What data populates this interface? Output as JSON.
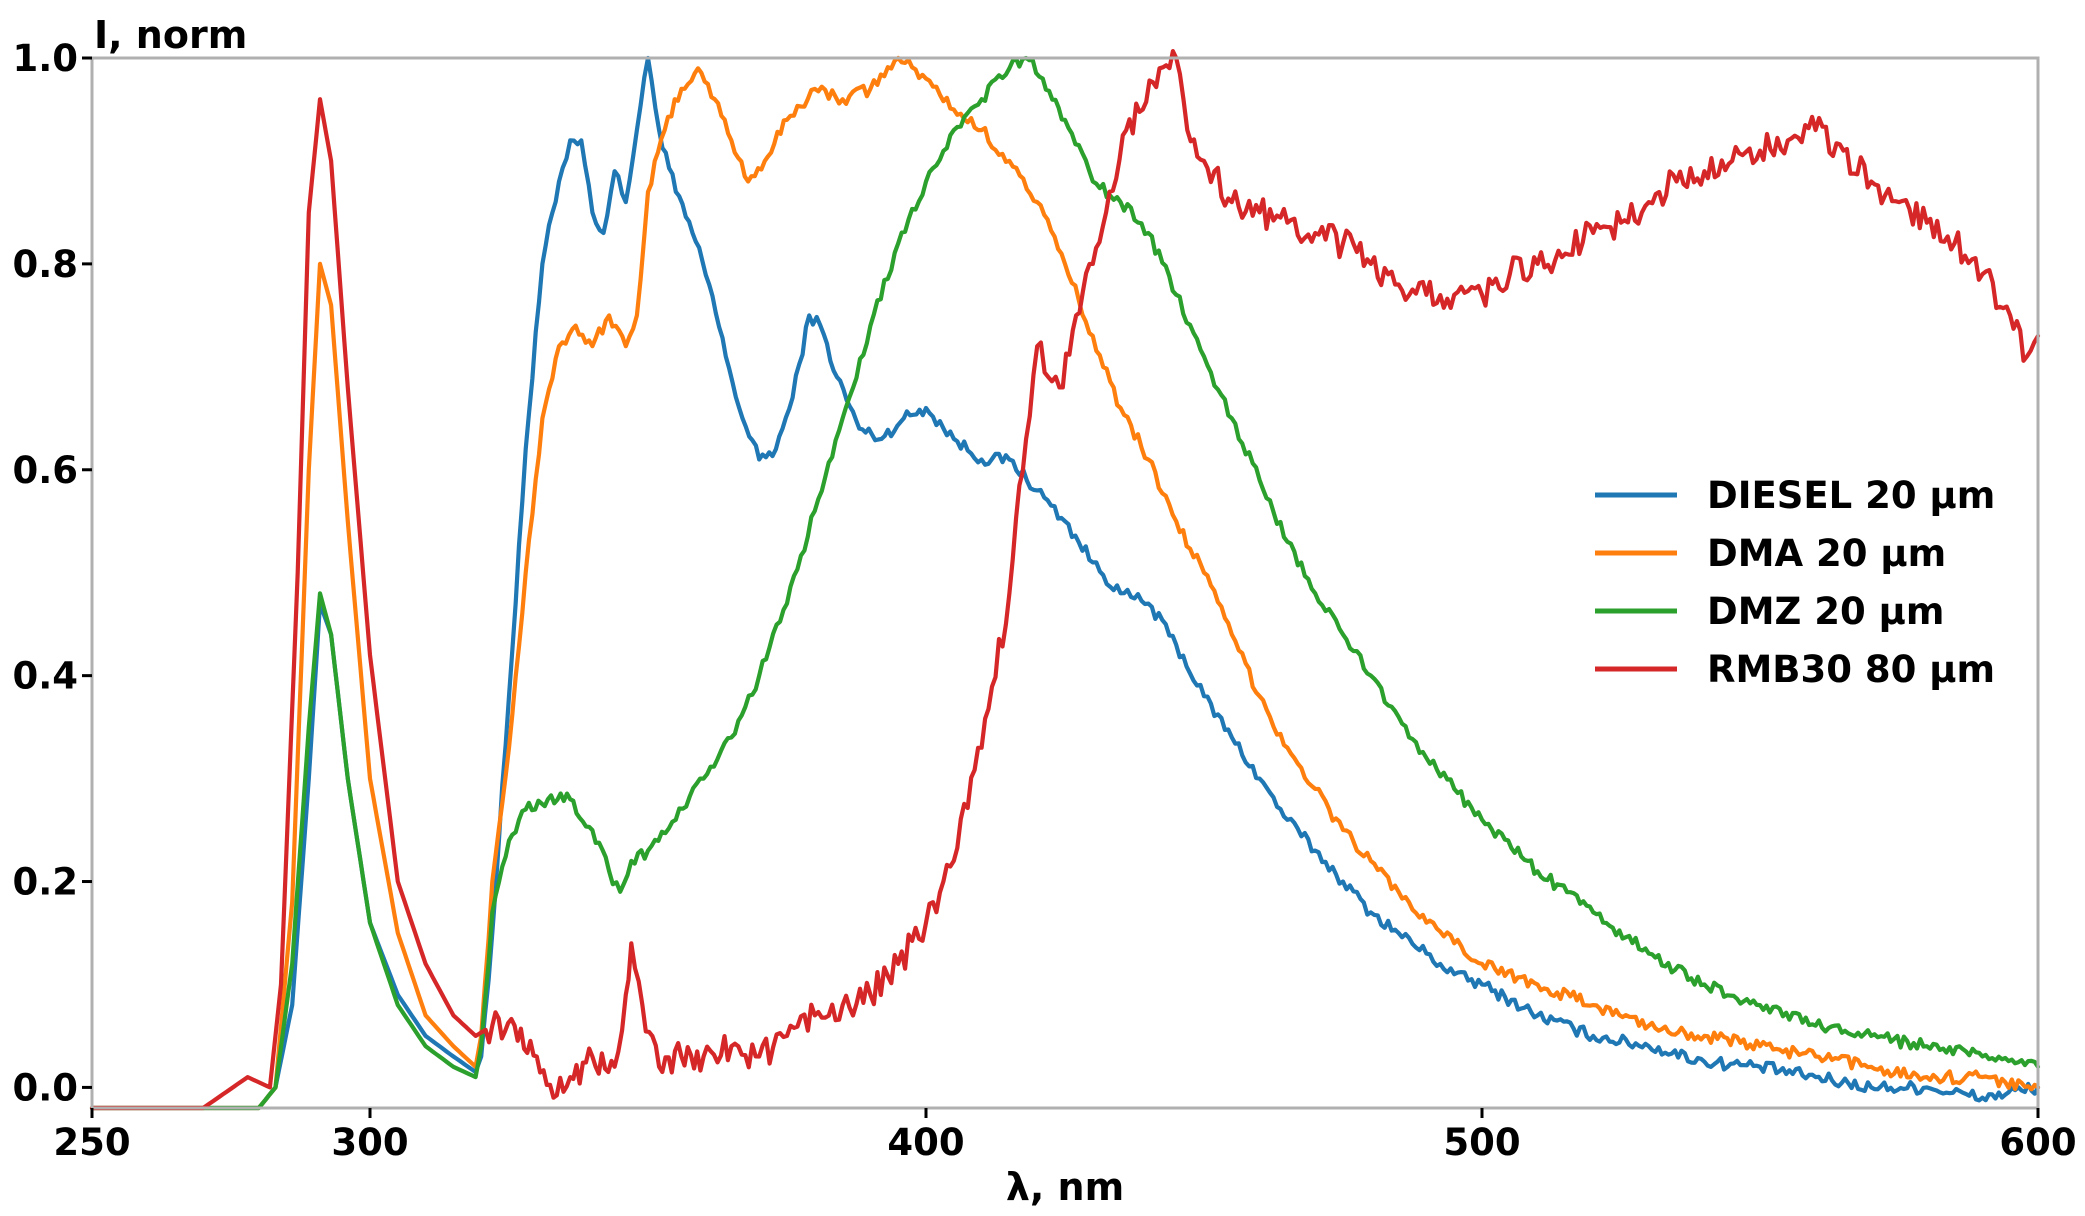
{
  "chart_data": {
    "type": "line",
    "title": "",
    "xlabel": "λ, nm",
    "ylabel": "I, norm",
    "xlim": [
      250,
      600
    ],
    "ylim": [
      -0.02,
      1.0
    ],
    "xticks": [
      250,
      300,
      400,
      500,
      600
    ],
    "xtick_labels": [
      "250",
      "300",
      "400",
      "500",
      "600"
    ],
    "yticks": [
      0.0,
      0.2,
      0.4,
      0.6,
      0.8,
      1.0
    ],
    "ytick_labels": [
      "0.0",
      "0.2",
      "0.4",
      "0.6",
      "0.8",
      "1.0"
    ],
    "grid": false,
    "legend_position": "center-right",
    "series": [
      {
        "name": "DIESEL 20 μm",
        "color": "#1f77b4",
        "points": [
          [
            250,
            -0.02
          ],
          [
            280,
            -0.02
          ],
          [
            283,
            0.0
          ],
          [
            286,
            0.08
          ],
          [
            289,
            0.3
          ],
          [
            291,
            0.47
          ],
          [
            293,
            0.44
          ],
          [
            296,
            0.3
          ],
          [
            300,
            0.16
          ],
          [
            305,
            0.09
          ],
          [
            310,
            0.05
          ],
          [
            315,
            0.03
          ],
          [
            319,
            0.015
          ],
          [
            320,
            0.03
          ],
          [
            322,
            0.15
          ],
          [
            325,
            0.38
          ],
          [
            328,
            0.62
          ],
          [
            331,
            0.8
          ],
          [
            334,
            0.88
          ],
          [
            336,
            0.92
          ],
          [
            338,
            0.92
          ],
          [
            340,
            0.85
          ],
          [
            342,
            0.83
          ],
          [
            344,
            0.89
          ],
          [
            346,
            0.86
          ],
          [
            348,
            0.93
          ],
          [
            350,
            1.0
          ],
          [
            352,
            0.93
          ],
          [
            355,
            0.87
          ],
          [
            358,
            0.83
          ],
          [
            361,
            0.78
          ],
          [
            364,
            0.71
          ],
          [
            367,
            0.65
          ],
          [
            370,
            0.61
          ],
          [
            373,
            0.62
          ],
          [
            376,
            0.67
          ],
          [
            379,
            0.75
          ],
          [
            381,
            0.74
          ],
          [
            384,
            0.69
          ],
          [
            388,
            0.64
          ],
          [
            392,
            0.63
          ],
          [
            396,
            0.65
          ],
          [
            400,
            0.66
          ],
          [
            405,
            0.63
          ],
          [
            410,
            0.61
          ],
          [
            415,
            0.61
          ],
          [
            420,
            0.58
          ],
          [
            425,
            0.55
          ],
          [
            430,
            0.51
          ],
          [
            435,
            0.48
          ],
          [
            440,
            0.47
          ],
          [
            445,
            0.43
          ],
          [
            450,
            0.38
          ],
          [
            455,
            0.34
          ],
          [
            460,
            0.3
          ],
          [
            465,
            0.26
          ],
          [
            470,
            0.23
          ],
          [
            475,
            0.2
          ],
          [
            480,
            0.17
          ],
          [
            485,
            0.15
          ],
          [
            490,
            0.13
          ],
          [
            495,
            0.11
          ],
          [
            500,
            0.1
          ],
          [
            510,
            0.07
          ],
          [
            520,
            0.05
          ],
          [
            530,
            0.04
          ],
          [
            540,
            0.025
          ],
          [
            550,
            0.02
          ],
          [
            560,
            0.01
          ],
          [
            570,
            0.0
          ],
          [
            580,
            0.0
          ],
          [
            590,
            -0.01
          ],
          [
            600,
            0.0
          ]
        ]
      },
      {
        "name": "DMA 20 μm",
        "color": "#ff7f0e",
        "points": [
          [
            250,
            -0.02
          ],
          [
            280,
            -0.02
          ],
          [
            283,
            0.0
          ],
          [
            286,
            0.18
          ],
          [
            289,
            0.6
          ],
          [
            291,
            0.8
          ],
          [
            293,
            0.76
          ],
          [
            296,
            0.55
          ],
          [
            300,
            0.3
          ],
          [
            305,
            0.15
          ],
          [
            310,
            0.07
          ],
          [
            315,
            0.04
          ],
          [
            319,
            0.02
          ],
          [
            320,
            0.05
          ],
          [
            322,
            0.2
          ],
          [
            325,
            0.33
          ],
          [
            328,
            0.5
          ],
          [
            331,
            0.65
          ],
          [
            334,
            0.72
          ],
          [
            337,
            0.74
          ],
          [
            340,
            0.72
          ],
          [
            343,
            0.75
          ],
          [
            346,
            0.72
          ],
          [
            348,
            0.75
          ],
          [
            350,
            0.87
          ],
          [
            353,
            0.93
          ],
          [
            356,
            0.97
          ],
          [
            359,
            0.99
          ],
          [
            362,
            0.96
          ],
          [
            365,
            0.92
          ],
          [
            368,
            0.88
          ],
          [
            371,
            0.9
          ],
          [
            375,
            0.94
          ],
          [
            380,
            0.97
          ],
          [
            385,
            0.96
          ],
          [
            390,
            0.97
          ],
          [
            395,
            1.0
          ],
          [
            400,
            0.98
          ],
          [
            405,
            0.95
          ],
          [
            410,
            0.93
          ],
          [
            415,
            0.9
          ],
          [
            420,
            0.86
          ],
          [
            425,
            0.8
          ],
          [
            430,
            0.73
          ],
          [
            435,
            0.66
          ],
          [
            440,
            0.61
          ],
          [
            445,
            0.55
          ],
          [
            450,
            0.5
          ],
          [
            455,
            0.44
          ],
          [
            460,
            0.38
          ],
          [
            465,
            0.33
          ],
          [
            470,
            0.29
          ],
          [
            475,
            0.25
          ],
          [
            480,
            0.22
          ],
          [
            485,
            0.19
          ],
          [
            490,
            0.16
          ],
          [
            495,
            0.14
          ],
          [
            500,
            0.12
          ],
          [
            510,
            0.1
          ],
          [
            520,
            0.08
          ],
          [
            530,
            0.06
          ],
          [
            540,
            0.05
          ],
          [
            550,
            0.04
          ],
          [
            560,
            0.03
          ],
          [
            570,
            0.02
          ],
          [
            580,
            0.01
          ],
          [
            590,
            0.01
          ],
          [
            600,
            0.0
          ]
        ]
      },
      {
        "name": "DMZ 20 μm",
        "color": "#2ca02c",
        "points": [
          [
            250,
            -0.02
          ],
          [
            280,
            -0.02
          ],
          [
            283,
            0.0
          ],
          [
            286,
            0.12
          ],
          [
            289,
            0.35
          ],
          [
            291,
            0.48
          ],
          [
            293,
            0.44
          ],
          [
            296,
            0.3
          ],
          [
            300,
            0.16
          ],
          [
            305,
            0.08
          ],
          [
            310,
            0.04
          ],
          [
            315,
            0.02
          ],
          [
            319,
            0.01
          ],
          [
            320,
            0.04
          ],
          [
            322,
            0.17
          ],
          [
            325,
            0.24
          ],
          [
            328,
            0.27
          ],
          [
            332,
            0.28
          ],
          [
            336,
            0.28
          ],
          [
            340,
            0.25
          ],
          [
            343,
            0.21
          ],
          [
            345,
            0.19
          ],
          [
            347,
            0.22
          ],
          [
            350,
            0.23
          ],
          [
            355,
            0.26
          ],
          [
            360,
            0.3
          ],
          [
            365,
            0.34
          ],
          [
            370,
            0.4
          ],
          [
            375,
            0.47
          ],
          [
            380,
            0.56
          ],
          [
            385,
            0.65
          ],
          [
            390,
            0.74
          ],
          [
            395,
            0.82
          ],
          [
            400,
            0.88
          ],
          [
            405,
            0.93
          ],
          [
            410,
            0.96
          ],
          [
            415,
            0.99
          ],
          [
            418,
            1.0
          ],
          [
            421,
            0.98
          ],
          [
            425,
            0.94
          ],
          [
            430,
            0.88
          ],
          [
            435,
            0.86
          ],
          [
            440,
            0.83
          ],
          [
            445,
            0.77
          ],
          [
            450,
            0.71
          ],
          [
            455,
            0.65
          ],
          [
            460,
            0.59
          ],
          [
            465,
            0.53
          ],
          [
            470,
            0.48
          ],
          [
            475,
            0.44
          ],
          [
            480,
            0.4
          ],
          [
            485,
            0.36
          ],
          [
            490,
            0.32
          ],
          [
            495,
            0.29
          ],
          [
            500,
            0.26
          ],
          [
            510,
            0.21
          ],
          [
            520,
            0.17
          ],
          [
            530,
            0.13
          ],
          [
            540,
            0.1
          ],
          [
            550,
            0.08
          ],
          [
            560,
            0.06
          ],
          [
            570,
            0.05
          ],
          [
            580,
            0.04
          ],
          [
            590,
            0.03
          ],
          [
            600,
            0.02
          ]
        ]
      },
      {
        "name": "RMB30 80 μm",
        "color": "#d62728",
        "points": [
          [
            250,
            -0.02
          ],
          [
            260,
            -0.02
          ],
          [
            270,
            -0.02
          ],
          [
            278,
            0.01
          ],
          [
            282,
            0.0
          ],
          [
            284,
            0.1
          ],
          [
            287,
            0.5
          ],
          [
            289,
            0.85
          ],
          [
            291,
            0.96
          ],
          [
            293,
            0.9
          ],
          [
            296,
            0.68
          ],
          [
            300,
            0.42
          ],
          [
            305,
            0.2
          ],
          [
            310,
            0.12
          ],
          [
            315,
            0.07
          ],
          [
            319,
            0.05
          ],
          [
            322,
            0.06
          ],
          [
            326,
            0.06
          ],
          [
            330,
            0.03
          ],
          [
            333,
            -0.01
          ],
          [
            336,
            0.01
          ],
          [
            340,
            0.03
          ],
          [
            344,
            0.02
          ],
          [
            346,
            0.09
          ],
          [
            347,
            0.14
          ],
          [
            349,
            0.08
          ],
          [
            352,
            0.02
          ],
          [
            356,
            0.03
          ],
          [
            360,
            0.03
          ],
          [
            365,
            0.04
          ],
          [
            370,
            0.03
          ],
          [
            375,
            0.05
          ],
          [
            380,
            0.07
          ],
          [
            385,
            0.08
          ],
          [
            390,
            0.09
          ],
          [
            395,
            0.12
          ],
          [
            400,
            0.16
          ],
          [
            405,
            0.22
          ],
          [
            410,
            0.33
          ],
          [
            415,
            0.48
          ],
          [
            418,
            0.63
          ],
          [
            420,
            0.72
          ],
          [
            422,
            0.69
          ],
          [
            424,
            0.68
          ],
          [
            427,
            0.75
          ],
          [
            430,
            0.8
          ],
          [
            433,
            0.87
          ],
          [
            436,
            0.93
          ],
          [
            439,
            0.95
          ],
          [
            442,
            0.99
          ],
          [
            445,
            1.0
          ],
          [
            447,
            0.93
          ],
          [
            450,
            0.9
          ],
          [
            455,
            0.86
          ],
          [
            460,
            0.85
          ],
          [
            465,
            0.84
          ],
          [
            470,
            0.83
          ],
          [
            475,
            0.82
          ],
          [
            480,
            0.8
          ],
          [
            485,
            0.78
          ],
          [
            490,
            0.77
          ],
          [
            495,
            0.77
          ],
          [
            500,
            0.77
          ],
          [
            505,
            0.79
          ],
          [
            510,
            0.8
          ],
          [
            515,
            0.81
          ],
          [
            520,
            0.83
          ],
          [
            525,
            0.84
          ],
          [
            530,
            0.86
          ],
          [
            535,
            0.88
          ],
          [
            540,
            0.89
          ],
          [
            545,
            0.9
          ],
          [
            550,
            0.91
          ],
          [
            555,
            0.92
          ],
          [
            560,
            0.93
          ],
          [
            565,
            0.91
          ],
          [
            570,
            0.88
          ],
          [
            575,
            0.86
          ],
          [
            580,
            0.84
          ],
          [
            585,
            0.82
          ],
          [
            590,
            0.79
          ],
          [
            595,
            0.75
          ],
          [
            598,
            0.71
          ],
          [
            600,
            0.73
          ]
        ]
      }
    ]
  }
}
